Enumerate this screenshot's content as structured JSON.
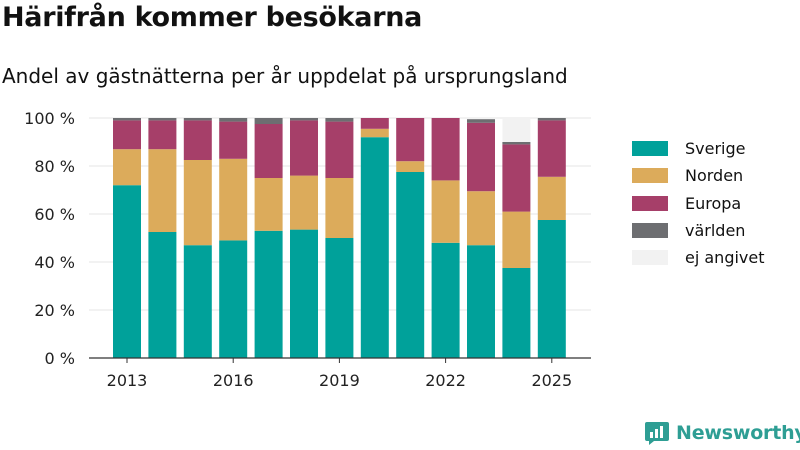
{
  "header": {
    "title": "Härifrån kommer besökarna",
    "subtitle": "Andel av gästnätterna per år uppdelat på ursprungsland"
  },
  "chart_data": {
    "type": "bar",
    "stacked": true,
    "categories": [
      "2013",
      "2014",
      "2015",
      "2016",
      "2017",
      "2018",
      "2019",
      "2020",
      "2021",
      "2022",
      "2023",
      "2024",
      "2025"
    ],
    "x_tick_labels": [
      "2013",
      "2016",
      "2019",
      "2022",
      "2025"
    ],
    "y_ticks": [
      0,
      20,
      40,
      60,
      80,
      100
    ],
    "y_tick_suffix": " %",
    "ylim": [
      0,
      100
    ],
    "grid": true,
    "legend_position": "right",
    "series": [
      {
        "name": "Sverige",
        "color": "#00a19a",
        "values": [
          72,
          52.5,
          47,
          49,
          53,
          53.5,
          50,
          92,
          77.5,
          48,
          47,
          37.5,
          57.5
        ]
      },
      {
        "name": "Norden",
        "color": "#dcab5b",
        "values": [
          15,
          34.5,
          35.5,
          34,
          22,
          22.5,
          25,
          3.5,
          4.5,
          26,
          22.5,
          23.5,
          18
        ]
      },
      {
        "name": "Europa",
        "color": "#a63f69",
        "values": [
          12,
          12,
          16.5,
          15.5,
          22.5,
          23,
          23.5,
          4.5,
          18,
          26,
          28.5,
          28,
          23.5
        ]
      },
      {
        "name": "världen",
        "color": "#6d6e71",
        "values": [
          1,
          1,
          1,
          1.5,
          2.5,
          1,
          1.5,
          0,
          0,
          0,
          1.5,
          1,
          1
        ]
      },
      {
        "name": "ej angivet",
        "color": "#f2f2f2",
        "values": [
          0,
          0,
          0,
          0,
          0,
          0,
          0,
          0,
          0,
          0,
          0,
          10,
          0
        ]
      }
    ]
  },
  "brand": {
    "name": "Newsworthy",
    "color": "#2e9e94",
    "icon": "newsworthy-logo-icon"
  }
}
